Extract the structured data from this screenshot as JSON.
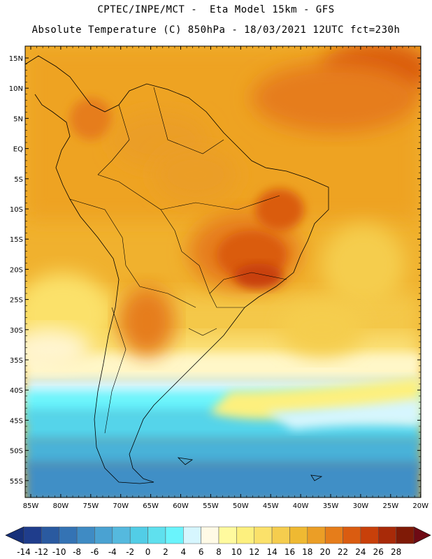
{
  "header": {
    "line1": "CPTEC/INPE/MCT -  Eta Model 15km - GFS",
    "line2": "Absolute Temperature (C) 850hPa - 18/03/2021 12UTC fct=230h"
  },
  "map": {
    "lat_labels": [
      "15N",
      "10N",
      "5N",
      "EQ",
      "5S",
      "10S",
      "15S",
      "20S",
      "25S",
      "30S",
      "35S",
      "40S",
      "45S",
      "50S",
      "55S"
    ],
    "lon_labels": [
      "85W",
      "80W",
      "75W",
      "70W",
      "65W",
      "60W",
      "55W",
      "50W",
      "45W",
      "40W",
      "35W",
      "30W",
      "25W",
      "20W"
    ]
  },
  "colorbar": {
    "labels": [
      "-14",
      "-12",
      "-10",
      "-8",
      "-6",
      "-4",
      "-2",
      "0",
      "2",
      "4",
      "6",
      "8",
      "10",
      "12",
      "14",
      "16",
      "18",
      "20",
      "22",
      "24",
      "26",
      "28"
    ],
    "colors": [
      "#1f3d8c",
      "#2a5aa0",
      "#3473b4",
      "#3f8bc4",
      "#4aa2d2",
      "#55b9de",
      "#52cde6",
      "#5fe0ee",
      "#6af4fc",
      "#d6f6fe",
      "#fffae6",
      "#fffa9e",
      "#fdf07e",
      "#fbe16a",
      "#f5cd4e",
      "#efb932",
      "#eb9e26",
      "#e67d1a",
      "#da5c10",
      "#c8400a",
      "#a82a08",
      "#7f1a06"
    ],
    "under_color": "#16307a",
    "over_color": "#6e0a14"
  }
}
